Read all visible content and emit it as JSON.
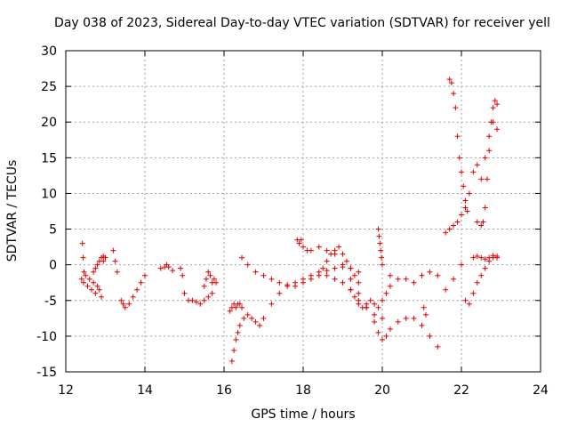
{
  "chart_data": {
    "type": "scatter",
    "title": "Day 038 of 2023, Sidereal Day-to-day VTEC variation (SDTVAR) for receiver yell",
    "xlabel": "GPS time / hours",
    "ylabel": "SDTVAR / TECUs",
    "xlim": [
      12,
      24
    ],
    "ylim": [
      -15,
      30
    ],
    "xticks": [
      12,
      14,
      16,
      18,
      20,
      22,
      24
    ],
    "yticks": [
      -15,
      -10,
      -5,
      0,
      5,
      10,
      15,
      20,
      25,
      30
    ],
    "grid": true,
    "marker": "+",
    "color": "#e00000",
    "series": [
      {
        "name": "s1",
        "x": [
          12.4,
          12.45,
          12.5,
          12.55,
          12.6,
          12.65,
          12.7,
          12.75,
          12.8,
          12.85,
          12.9,
          12.95,
          13.0
        ],
        "y": [
          -2,
          -2.5,
          -1.5,
          -3,
          -2,
          -3.5,
          -2.5,
          -4,
          -3,
          -3.5,
          -4.5,
          0.5,
          1
        ]
      },
      {
        "name": "s2",
        "x": [
          12.42,
          12.44,
          12.46
        ],
        "y": [
          3,
          1,
          -1
        ]
      },
      {
        "name": "s3",
        "x": [
          12.7,
          12.75,
          12.8,
          12.85,
          12.9,
          12.95
        ],
        "y": [
          -1,
          -0.5,
          0,
          0.5,
          1,
          1.2
        ]
      },
      {
        "name": "s4",
        "x": [
          13.2,
          13.25,
          13.3
        ],
        "y": [
          2,
          0.5,
          -1
        ]
      },
      {
        "name": "s5",
        "x": [
          13.4,
          13.45,
          13.5,
          13.6,
          13.7,
          13.8,
          13.9,
          14.0
        ],
        "y": [
          -5,
          -5.5,
          -6,
          -5.5,
          -4.5,
          -3.5,
          -2.5,
          -1.5
        ]
      },
      {
        "name": "s6",
        "x": [
          14.4,
          14.5,
          14.55,
          14.6,
          14.7
        ],
        "y": [
          -0.5,
          -0.3,
          0,
          -0.3,
          -0.8
        ]
      },
      {
        "name": "s7",
        "x": [
          14.9,
          14.95,
          15.0,
          15.1,
          15.2,
          15.3,
          15.4,
          15.5,
          15.6,
          15.7
        ],
        "y": [
          -0.5,
          -1.5,
          -4,
          -5,
          -5,
          -5.2,
          -5.5,
          -5,
          -4.5,
          -4
        ]
      },
      {
        "name": "s8",
        "x": [
          15.5,
          15.55,
          15.6,
          15.65,
          15.7,
          15.75,
          15.8
        ],
        "y": [
          -3,
          -2,
          -1,
          -1.5,
          -2.5,
          -2,
          -2.5
        ]
      },
      {
        "name": "s9",
        "x": [
          16.15,
          16.2,
          16.25,
          16.3,
          16.35,
          16.4,
          16.45
        ],
        "y": [
          -6.5,
          -6,
          -5.5,
          -6,
          -5.5,
          -5.5,
          -6
        ]
      },
      {
        "name": "s10",
        "x": [
          16.2,
          16.25,
          16.3,
          16.35,
          16.4,
          16.5,
          16.6,
          16.7,
          16.8,
          16.9,
          17.0,
          17.2,
          17.4,
          17.6,
          17.8,
          18.0,
          18.2,
          18.4,
          18.6,
          18.8,
          19.0,
          19.2,
          19.4
        ],
        "y": [
          -13.5,
          -12,
          -10.5,
          -9.5,
          -8.5,
          -7.5,
          -7,
          -7.5,
          -8,
          -8.5,
          -7.5,
          -5.5,
          -4,
          -3,
          -2.5,
          -2,
          -1.5,
          -1,
          -0.8,
          -0.5,
          -0.3,
          -0.5,
          -1
        ]
      },
      {
        "name": "s11",
        "x": [
          16.45,
          16.6,
          16.8,
          17.0,
          17.2,
          17.4,
          17.6,
          17.8,
          18.0,
          18.2,
          18.4,
          18.6,
          18.8,
          19.0,
          19.2,
          19.4,
          19.6,
          19.8,
          20.0
        ],
        "y": [
          1,
          0,
          -1,
          -1.5,
          -2,
          -2.5,
          -2.8,
          -3,
          -2.5,
          -2,
          -1.5,
          -1.5,
          -2,
          -2.5,
          -3.5,
          -5,
          -6,
          -7,
          -7.5
        ]
      },
      {
        "name": "s12",
        "x": [
          17.85,
          17.9,
          17.95,
          18.0,
          18.1,
          18.2,
          18.4,
          18.6,
          18.8,
          19.0,
          19.2,
          19.4,
          19.6,
          19.8,
          19.9,
          20.0,
          20.1,
          20.2,
          20.4,
          20.6,
          20.8,
          21.0,
          21.2,
          21.4
        ],
        "y": [
          3.5,
          3,
          3.5,
          2.5,
          2,
          2,
          2.5,
          2,
          1.5,
          0,
          -2,
          -4,
          -6,
          -8,
          -9.5,
          -10.5,
          -10,
          -9,
          -8,
          -7.5,
          -7.5,
          -8.5,
          -10,
          -11.5
        ]
      },
      {
        "name": "s13",
        "x": [
          18.5,
          18.6,
          18.7,
          18.8,
          18.9,
          19.0,
          19.1,
          19.2,
          19.3,
          19.4
        ],
        "y": [
          -0.5,
          0.5,
          1.5,
          2,
          2.5,
          1.5,
          0.5,
          -0.5,
          -1.5,
          -2.5
        ]
      },
      {
        "name": "s14",
        "x": [
          19.2,
          19.3,
          19.4,
          19.5,
          19.6,
          19.7,
          19.8,
          19.9,
          20.0,
          20.1,
          20.2
        ],
        "y": [
          -3.5,
          -4.5,
          -5.5,
          -6,
          -5.5,
          -5,
          -5.5,
          -6,
          -5,
          -4,
          -3
        ]
      },
      {
        "name": "s15",
        "x": [
          19.9,
          19.92,
          19.94,
          19.96,
          19.98,
          20.0
        ],
        "y": [
          5,
          4,
          3,
          2,
          1,
          0
        ]
      },
      {
        "name": "s16",
        "x": [
          20.2,
          20.4,
          20.6,
          20.8,
          21.0,
          21.2,
          21.4,
          21.6,
          21.8,
          22.0
        ],
        "y": [
          -1.5,
          -2,
          -2,
          -2.5,
          -1.5,
          -1,
          -1.5,
          -3.5,
          -2,
          0
        ]
      },
      {
        "name": "s17",
        "x": [
          21.05,
          21.1
        ],
        "y": [
          -6,
          -7
        ]
      },
      {
        "name": "s18",
        "x": [
          21.6,
          21.7,
          21.8,
          21.9,
          22.0,
          22.1,
          22.2,
          22.3,
          22.4,
          22.5,
          22.6,
          22.7,
          22.8,
          22.9
        ],
        "y": [
          4.5,
          5,
          5.5,
          6,
          7,
          8,
          10,
          13,
          14,
          12,
          15,
          18,
          20,
          19
        ]
      },
      {
        "name": "s19",
        "x": [
          21.7,
          21.75,
          21.8,
          21.85,
          21.9,
          21.95,
          22.0,
          22.05,
          22.1,
          22.15
        ],
        "y": [
          26,
          25.5,
          24,
          22,
          18,
          15,
          13,
          11,
          9,
          7.5
        ]
      },
      {
        "name": "s20",
        "x": [
          22.1,
          22.2,
          22.3,
          22.4,
          22.5,
          22.6,
          22.7,
          22.8,
          22.9
        ],
        "y": [
          -5,
          -5.5,
          -4,
          -2.5,
          -1.5,
          -0.5,
          0.5,
          1,
          1.2
        ]
      },
      {
        "name": "s21",
        "x": [
          22.4,
          22.5,
          22.55,
          22.6,
          22.65,
          22.7,
          22.75,
          22.8,
          22.85,
          22.9
        ],
        "y": [
          6,
          5.5,
          6,
          8,
          12,
          16,
          20,
          22,
          23,
          22.5
        ]
      },
      {
        "name": "s22",
        "x": [
          22.3,
          22.4,
          22.5,
          22.6,
          22.7,
          22.8,
          22.9
        ],
        "y": [
          1,
          1.2,
          1,
          0.8,
          1,
          1.3,
          1
        ]
      }
    ]
  }
}
